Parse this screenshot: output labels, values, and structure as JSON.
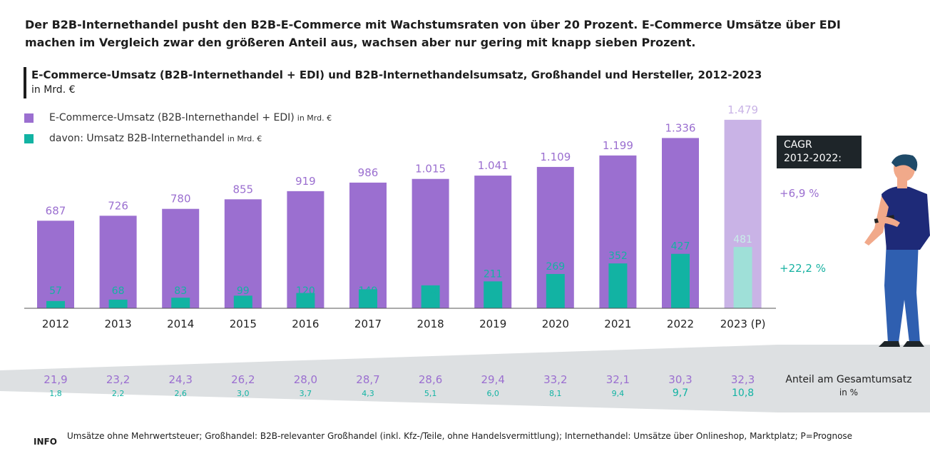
{
  "headline": "Der B2B-Internethandel pusht den B2B-E-Commerce mit Wachstumsraten von über 20 Prozent. E-Commerce Umsätze über EDI machen im Vergleich zwar den größeren Anteil aus, wachsen aber nur gering mit knapp sieben Prozent.",
  "colors": {
    "ecommerce": "#9b6fd0",
    "ecommerce_forecast": "#c9b3e6",
    "internet": "#12b3a3",
    "internet_forecast": "#9fe0d8",
    "dark": "#1e2529"
  },
  "chart_data": {
    "type": "bar",
    "title": "E-Commerce-Umsatz (B2B-Internethandel + EDI) und B2B-Internethandelsumsatz, Großhandel und Hersteller, 2012-2023",
    "subtitle": "in Mrd. €",
    "categories": [
      "2012",
      "2013",
      "2014",
      "2015",
      "2016",
      "2017",
      "2018",
      "2019",
      "2020",
      "2021",
      "2022",
      "2023 (P)"
    ],
    "series": [
      {
        "name": "E-Commerce-Umsatz (B2B-Internethandel + EDI)",
        "unit": "in Mrd. €",
        "values": [
          687,
          726,
          780,
          855,
          919,
          986,
          1015,
          1041,
          1109,
          1199,
          1336,
          1479
        ],
        "labels": [
          "687",
          "726",
          "780",
          "855",
          "919",
          "986",
          "1.015",
          "1.041",
          "1.109",
          "1.199",
          "1.336",
          "1.479"
        ]
      },
      {
        "name": "davon: Umsatz B2B-Internethandel",
        "unit": "in Mrd. €",
        "values": [
          57,
          68,
          83,
          99,
          120,
          149,
          180,
          211,
          269,
          352,
          427,
          481
        ],
        "labels": [
          "57",
          "68",
          "83",
          "99",
          "120",
          "149",
          "180",
          "211",
          "269",
          "352",
          "427",
          "481"
        ]
      }
    ],
    "share": {
      "label": "Anteil am Gesamtumsatz",
      "unit": "in %",
      "ecommerce": [
        "21,9",
        "23,2",
        "24,3",
        "26,2",
        "28,0",
        "28,7",
        "28,6",
        "29,4",
        "33,2",
        "32,1",
        "30,3",
        "32,3"
      ],
      "internet": [
        "1,8",
        "2,2",
        "2,6",
        "3,0",
        "3,7",
        "4,3",
        "5,1",
        "6,0",
        "8,1",
        "9,4",
        "9,7",
        "10,8"
      ]
    },
    "cagr": {
      "label": "CAGR\n2012-2022:",
      "ecommerce": "+6,9 %",
      "internet": "+22,2 %"
    },
    "ylim": [
      0,
      1600
    ]
  },
  "info": {
    "tag": "INFO",
    "text": "Umsätze ohne Mehrwertsteuer; Großhandel: B2B-relevanter Großhandel (inkl. Kfz-/Teile, ohne Handelsvermittlung); Internethandel: Umsätze über Onlineshop, Marktplatz; P=Prognose"
  }
}
